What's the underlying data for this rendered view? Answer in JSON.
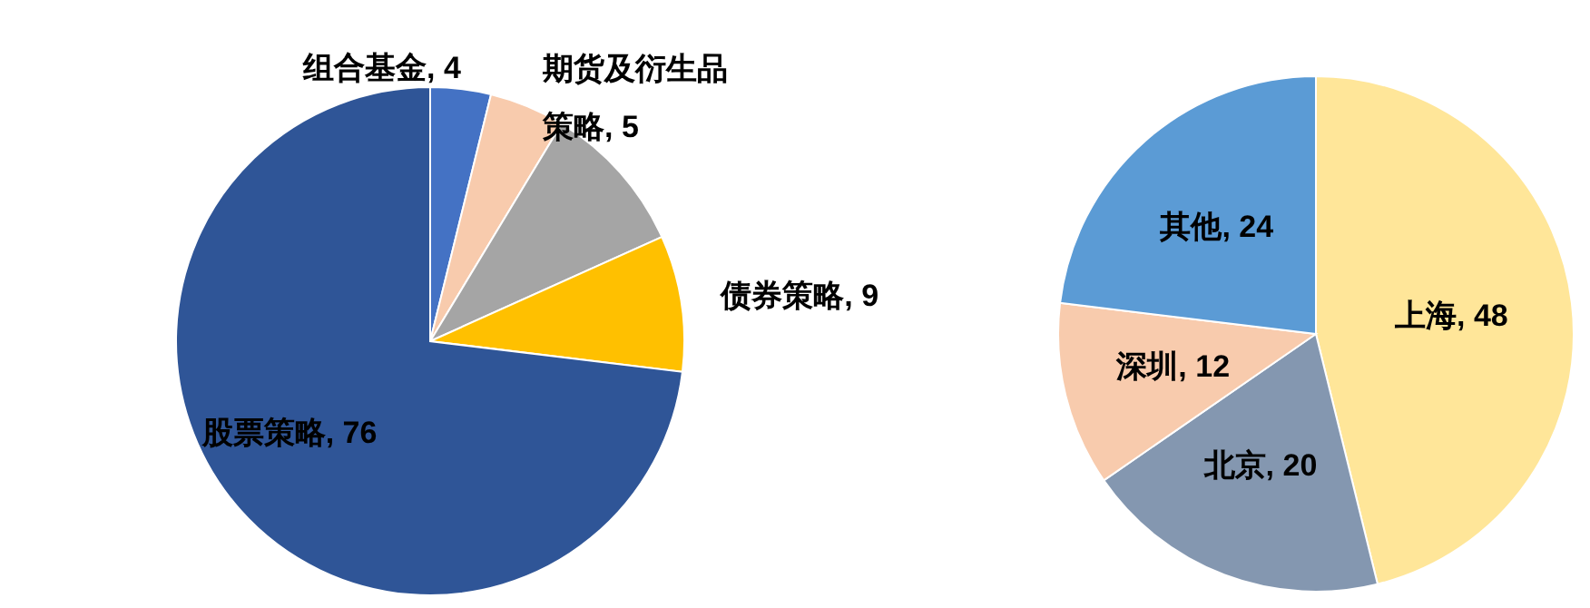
{
  "chart_data": [
    {
      "type": "pie",
      "categories": [
        "组合基金",
        "期货及衍生品策略",
        null,
        "债券策略",
        "股票策略"
      ],
      "values": [
        4,
        5,
        10,
        9,
        76
      ],
      "colors": [
        "#4472c4",
        "#f8cbad",
        "#a5a5a5",
        "#ffc000",
        "#2f5597"
      ],
      "value_labels": [
        ", 4",
        ", 5",
        null,
        ", 9",
        ", 76"
      ]
    },
    {
      "type": "pie",
      "categories": [
        "上海",
        "北京",
        "深圳",
        "其他"
      ],
      "values": [
        48,
        20,
        12,
        24
      ],
      "colors": [
        "#ffe699",
        "#8497b0",
        "#f8cbad",
        "#5b9bd5"
      ],
      "value_labels": [
        ", 48",
        ", 20",
        ", 12",
        ", 24"
      ]
    }
  ]
}
